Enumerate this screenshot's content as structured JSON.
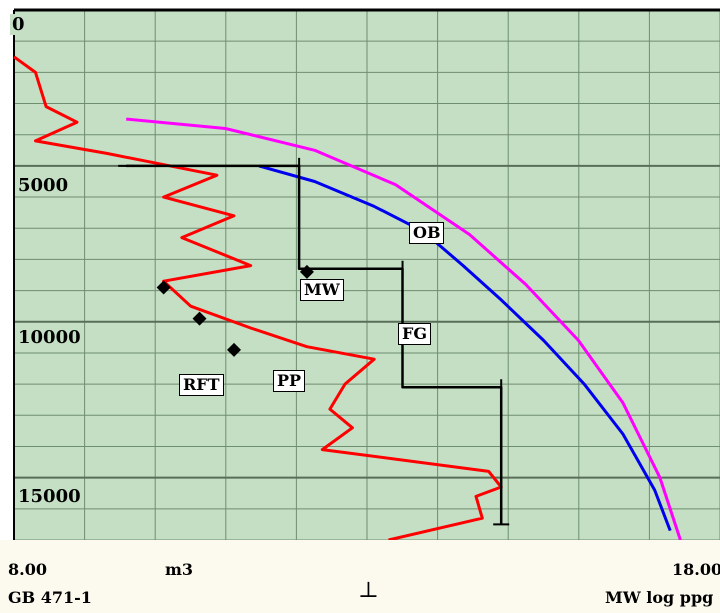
{
  "chart_data": {
    "type": "line",
    "y_axis": {
      "reversed": true,
      "tick_labels": [
        "0",
        "5000",
        "10000",
        "15000"
      ],
      "ylim": [
        0,
        17000
      ]
    },
    "x_axis": {
      "left_label": "8.00",
      "right_label": "18.00",
      "middle_label": "m3",
      "xlim": [
        8,
        18
      ],
      "scale": "log"
    },
    "grid": true,
    "series": [
      {
        "name": "OB",
        "color": "#ff00ff",
        "points": [
          [
            9.1,
            3500
          ],
          [
            10.2,
            3800
          ],
          [
            11.3,
            4500
          ],
          [
            12.4,
            5600
          ],
          [
            13.5,
            7200
          ],
          [
            14.4,
            8800
          ],
          [
            15.3,
            10600
          ],
          [
            16.1,
            12600
          ],
          [
            16.8,
            15000
          ],
          [
            17.2,
            17000
          ]
        ]
      },
      {
        "name": "FG",
        "color": "#0000ee",
        "points": [
          [
            10.6,
            5000
          ],
          [
            11.3,
            5500
          ],
          [
            12.1,
            6300
          ],
          [
            12.8,
            7100
          ],
          [
            13.4,
            8200
          ],
          [
            14.0,
            9300
          ],
          [
            14.7,
            10600
          ],
          [
            15.4,
            12000
          ],
          [
            16.1,
            13600
          ],
          [
            16.7,
            15400
          ],
          [
            17.0,
            16700
          ]
        ]
      },
      {
        "name": "PP",
        "color": "#ff0000",
        "points": [
          [
            8.0,
            1500
          ],
          [
            8.2,
            2000
          ],
          [
            8.3,
            3100
          ],
          [
            8.6,
            3600
          ],
          [
            8.2,
            4200
          ],
          [
            8.9,
            4600
          ],
          [
            10.1,
            5300
          ],
          [
            9.5,
            6000
          ],
          [
            10.3,
            6600
          ],
          [
            9.7,
            7300
          ],
          [
            10.5,
            8200
          ],
          [
            9.5,
            8700
          ],
          [
            9.8,
            9500
          ],
          [
            10.5,
            10200
          ],
          [
            11.2,
            10800
          ],
          [
            12.1,
            11200
          ],
          [
            11.7,
            12000
          ],
          [
            11.5,
            12800
          ],
          [
            11.8,
            13400
          ],
          [
            11.4,
            14100
          ],
          [
            13.8,
            14800
          ],
          [
            14.0,
            15300
          ],
          [
            13.6,
            15600
          ],
          [
            13.7,
            16300
          ],
          [
            12.3,
            17000
          ]
        ]
      },
      {
        "name": "MW",
        "color": "#000000",
        "points": [
          [
            9.1,
            5000
          ],
          [
            11.1,
            5000
          ],
          [
            11.1,
            8300
          ],
          [
            12.5,
            8300
          ],
          [
            12.5,
            12100
          ],
          [
            14.0,
            12100
          ],
          [
            14.0,
            16500
          ]
        ]
      }
    ],
    "rft_points": [
      [
        11.2,
        8400
      ],
      [
        9.5,
        8900
      ],
      [
        9.9,
        9900
      ],
      [
        10.3,
        10900
      ]
    ],
    "annotations": [
      "OB",
      "MW",
      "FG",
      "RFT",
      "PP"
    ]
  },
  "footer": {
    "left_text": "GB 471-1",
    "right_text": "MW log ppg",
    "cursor_symbol": "⊥"
  },
  "colors": {
    "plot_bg": "#c5dfc4",
    "grid": "#6f8d6f",
    "major_grid": "#586e58"
  }
}
